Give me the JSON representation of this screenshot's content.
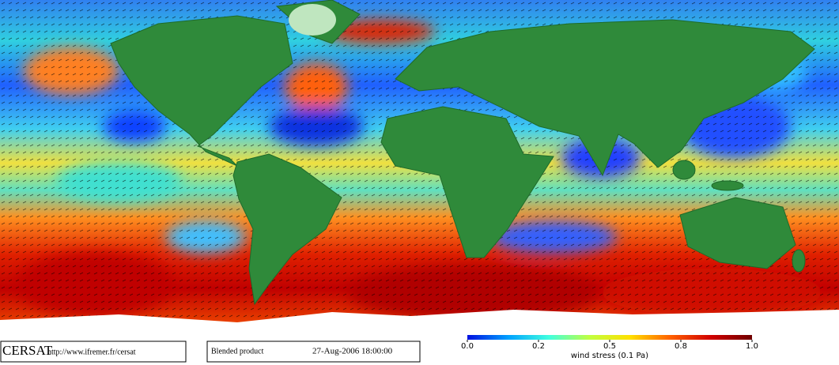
{
  "map": {
    "colorbar": {
      "ticks": [
        {
          "value": 0,
          "label": "0.0"
        },
        {
          "value": 0.2,
          "label": "0.2"
        },
        {
          "value": 0.5,
          "label": "0.5"
        },
        {
          "value": 0.8,
          "label": "0.8"
        },
        {
          "value": 1,
          "label": "1.0"
        }
      ],
      "label": "wind stress (0.1 Pa)",
      "colors": [
        "#0010e0",
        "#00a0ff",
        "#40ffe0",
        "#c0ff40",
        "#ffe000",
        "#ff6000",
        "#d00000",
        "#700000"
      ]
    }
  },
  "footer": {
    "logo": "CERSAT",
    "url": "http://www.ifremer.fr/cersat",
    "product": "Blended product",
    "date": "27-Aug-2006 18:00:00"
  }
}
